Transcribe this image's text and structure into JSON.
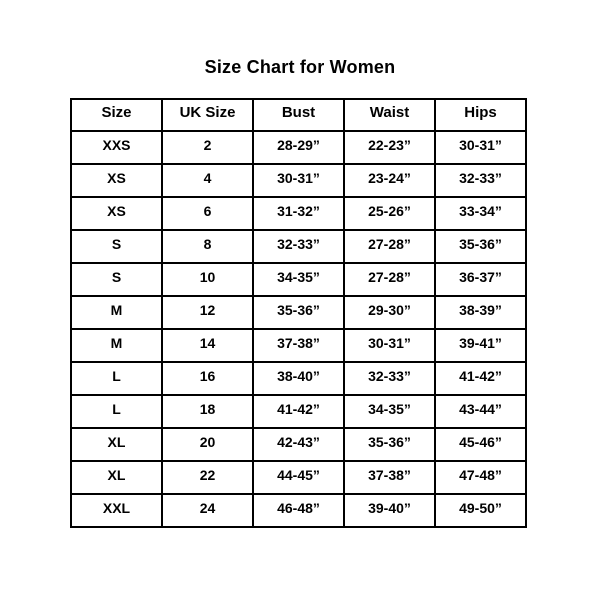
{
  "page": {
    "background_color": "#ffffff",
    "text_color": "#000000",
    "border_color": "#000000"
  },
  "title": "Size Chart for Women",
  "chart_data": {
    "type": "table",
    "title": "Size Chart for Women",
    "columns": [
      "Size",
      "UK Size",
      "Bust",
      "Waist",
      "Hips"
    ],
    "rows": [
      [
        "XXS",
        "2",
        "28-29”",
        "22-23”",
        "30-31”"
      ],
      [
        "XS",
        "4",
        "30-31”",
        "23-24”",
        "32-33”"
      ],
      [
        "XS",
        "6",
        "31-32”",
        "25-26”",
        "33-34”"
      ],
      [
        "S",
        "8",
        "32-33”",
        "27-28”",
        "35-36”"
      ],
      [
        "S",
        "10",
        "34-35”",
        "27-28”",
        "36-37”"
      ],
      [
        "M",
        "12",
        "35-36”",
        "29-30”",
        "38-39”"
      ],
      [
        "M",
        "14",
        "37-38”",
        "30-31”",
        "39-41”"
      ],
      [
        "L",
        "16",
        "38-40”",
        "32-33”",
        "41-42”"
      ],
      [
        "L",
        "18",
        "41-42”",
        "34-35”",
        "43-44”"
      ],
      [
        "XL",
        "20",
        "42-43”",
        "35-36”",
        "45-46”"
      ],
      [
        "XL",
        "22",
        "44-45”",
        "37-38”",
        "47-48”"
      ],
      [
        "XXL",
        "24",
        "46-48”",
        "39-40”",
        "49-50”"
      ]
    ]
  }
}
